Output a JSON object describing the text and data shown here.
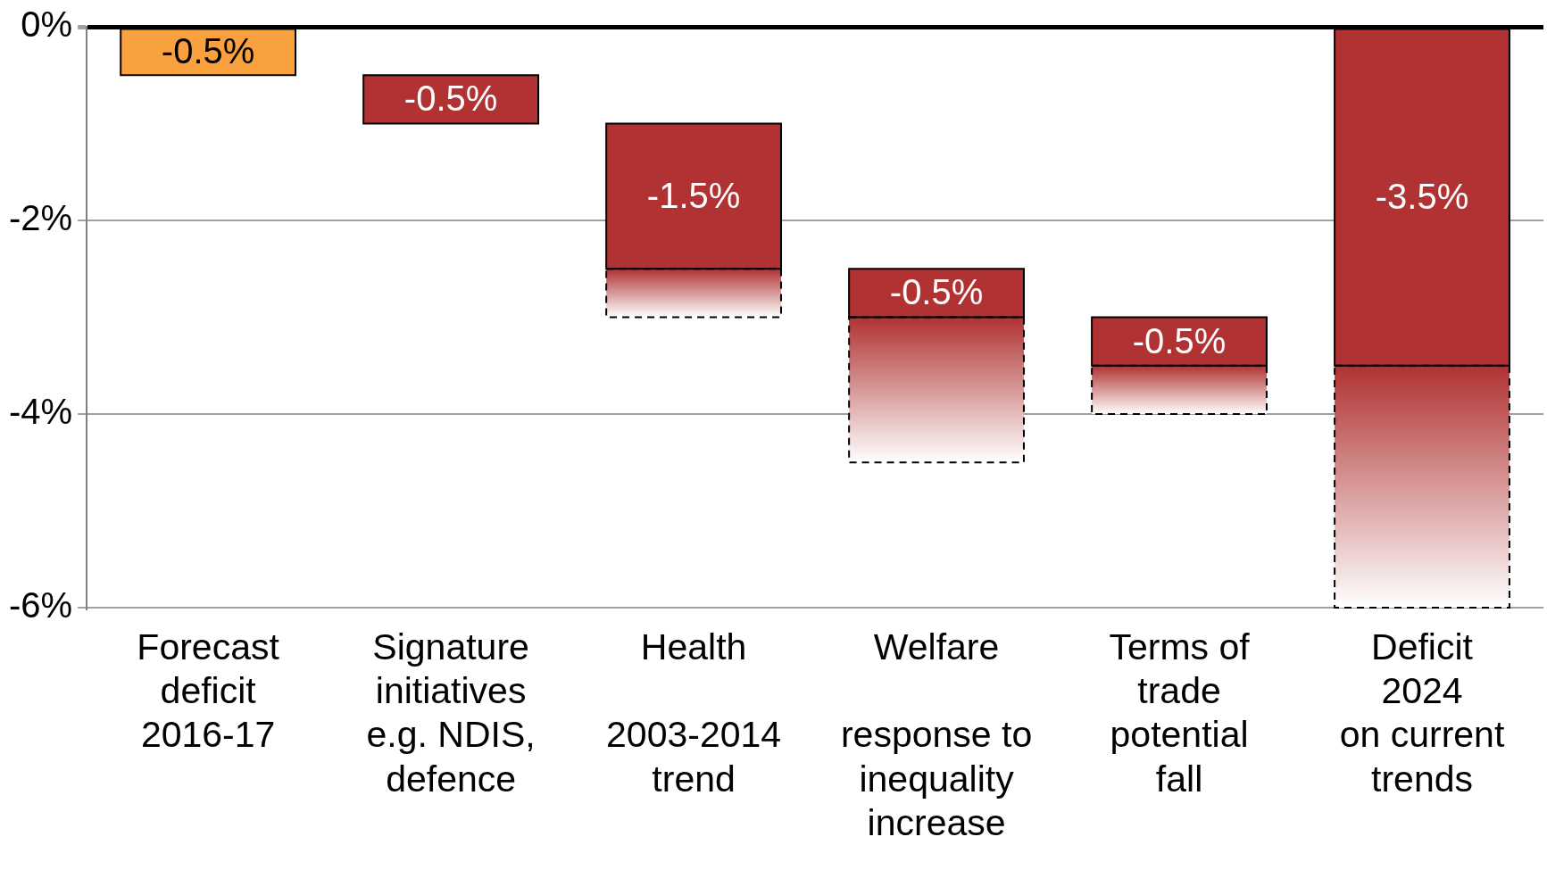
{
  "chart_data": {
    "type": "bar",
    "categories": [
      "Forecast\ndeficit\n2016-17",
      "Signature\ninitiatives\ne.g. NDIS,\ndefence",
      "Health\n\n2003-2014\ntrend",
      "Welfare\n\nresponse to\ninequality\nincrease",
      "Terms of\ntrade\npotential\nfall",
      "Deficit\n2024\non current\ntrends"
    ],
    "series": [
      {
        "colors": [
          "#f9a03f",
          "#b03232",
          "#b03232",
          "#b03232",
          "#b03232",
          "#b03232"
        ],
        "values": [
          -0.5,
          -0.5,
          -1.5,
          -0.5,
          -0.5,
          -3.5
        ],
        "base": [
          0,
          -0.5,
          -1,
          -2.5,
          -3,
          0
        ],
        "value_labels": [
          "-0.5%",
          "-0.5%",
          "-1.5%",
          "-0.5%",
          "-0.5%",
          "-3.5%"
        ],
        "line_style": "solid"
      },
      {
        "color": "#b03232",
        "values": [
          null,
          null,
          -0.5,
          -1.5,
          -0.5,
          -2.5
        ],
        "base": [
          null,
          null,
          -2.5,
          -3,
          -3.5,
          -3.5
        ],
        "line_style": "dashed"
      }
    ],
    "ylim": [
      -6,
      0
    ],
    "yticks": [
      {
        "value": 0,
        "label": "0%"
      },
      {
        "value": -2,
        "label": "-2%"
      },
      {
        "value": -4,
        "label": "-4%"
      },
      {
        "value": -6,
        "label": "-6%"
      }
    ],
    "grid": "y",
    "legend": false
  }
}
